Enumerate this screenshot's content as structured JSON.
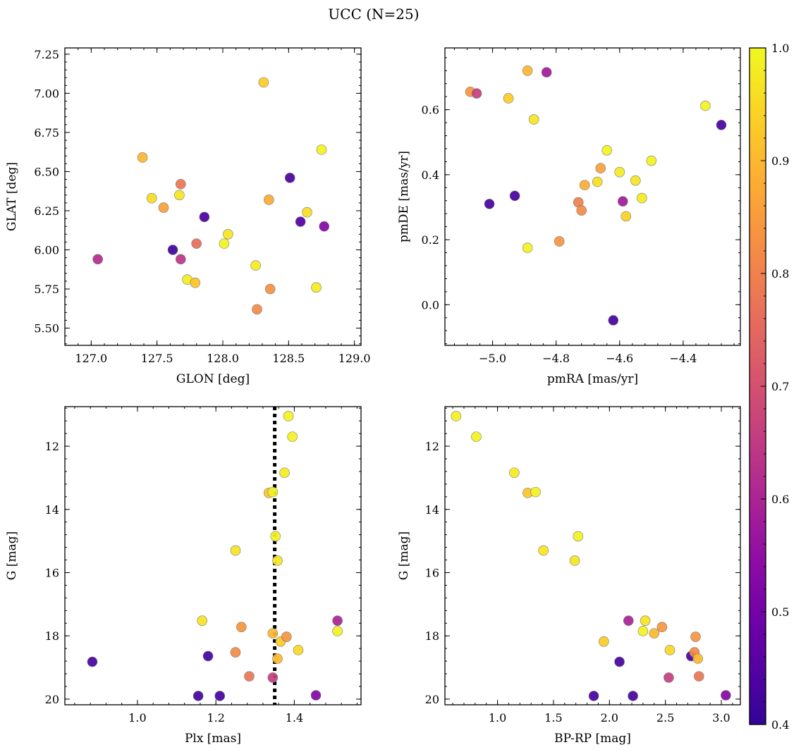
{
  "figure_title": "UCC (N=25)",
  "chart_data": [
    {
      "type": "scatter",
      "xlabel": "GLON [deg]",
      "ylabel": "GLAT [deg]",
      "xlim": [
        126.8,
        129.05
      ],
      "ylim": [
        5.39,
        7.29
      ],
      "yinvert": false,
      "xticks": [
        127.0,
        127.5,
        128.0,
        128.5,
        129.0
      ],
      "yticks": [
        5.5,
        5.75,
        6.0,
        6.25,
        6.5,
        6.75,
        7.0,
        7.25
      ],
      "xdec": 1,
      "ydec": 2,
      "points": [
        {
          "x": 127.05,
          "y": 5.94,
          "c": 0.62
        },
        {
          "x": 127.39,
          "y": 6.59,
          "c": 0.9
        },
        {
          "x": 127.46,
          "y": 6.33,
          "c": 0.96
        },
        {
          "x": 127.55,
          "y": 6.27,
          "c": 0.86
        },
        {
          "x": 127.62,
          "y": 6.0,
          "c": 0.42
        },
        {
          "x": 127.67,
          "y": 6.35,
          "c": 0.97
        },
        {
          "x": 127.68,
          "y": 6.42,
          "c": 0.78
        },
        {
          "x": 127.68,
          "y": 5.94,
          "c": 0.64
        },
        {
          "x": 127.73,
          "y": 5.81,
          "c": 0.98
        },
        {
          "x": 127.79,
          "y": 5.79,
          "c": 0.92
        },
        {
          "x": 127.8,
          "y": 6.04,
          "c": 0.76
        },
        {
          "x": 127.86,
          "y": 6.21,
          "c": 0.44
        },
        {
          "x": 128.01,
          "y": 6.04,
          "c": 0.99
        },
        {
          "x": 128.04,
          "y": 6.1,
          "c": 0.97
        },
        {
          "x": 128.25,
          "y": 5.9,
          "c": 0.98
        },
        {
          "x": 128.26,
          "y": 5.62,
          "c": 0.82
        },
        {
          "x": 128.31,
          "y": 7.07,
          "c": 0.93
        },
        {
          "x": 128.35,
          "y": 6.32,
          "c": 0.88
        },
        {
          "x": 128.36,
          "y": 5.75,
          "c": 0.83
        },
        {
          "x": 128.51,
          "y": 6.46,
          "c": 0.44
        },
        {
          "x": 128.59,
          "y": 6.18,
          "c": 0.45
        },
        {
          "x": 128.64,
          "y": 6.24,
          "c": 0.96
        },
        {
          "x": 128.71,
          "y": 5.76,
          "c": 0.98
        },
        {
          "x": 128.75,
          "y": 6.64,
          "c": 0.99
        },
        {
          "x": 128.77,
          "y": 6.15,
          "c": 0.53
        }
      ]
    },
    {
      "type": "scatter",
      "xlabel": "pmRA [mas/yr]",
      "ylabel": "pmDE [mas/yr]",
      "xlim": [
        -5.15,
        -4.22
      ],
      "ylim": [
        -0.125,
        0.79
      ],
      "yinvert": false,
      "xticks": [
        -5.0,
        -4.8,
        -4.6,
        -4.4
      ],
      "yticks": [
        0.0,
        0.2,
        0.4,
        0.6
      ],
      "xdec": 1,
      "ydec": 1,
      "points": [
        {
          "x": -5.07,
          "y": 0.655,
          "c": 0.84
        },
        {
          "x": -5.05,
          "y": 0.65,
          "c": 0.66
        },
        {
          "x": -4.89,
          "y": 0.72,
          "c": 0.9
        },
        {
          "x": -4.83,
          "y": 0.715,
          "c": 0.58
        },
        {
          "x": -4.95,
          "y": 0.635,
          "c": 0.93
        },
        {
          "x": -4.87,
          "y": 0.57,
          "c": 0.97
        },
        {
          "x": -5.01,
          "y": 0.31,
          "c": 0.43
        },
        {
          "x": -4.93,
          "y": 0.335,
          "c": 0.43
        },
        {
          "x": -4.89,
          "y": 0.175,
          "c": 0.99
        },
        {
          "x": -4.79,
          "y": 0.195,
          "c": 0.84
        },
        {
          "x": -4.73,
          "y": 0.315,
          "c": 0.8
        },
        {
          "x": -4.72,
          "y": 0.29,
          "c": 0.82
        },
        {
          "x": -4.71,
          "y": 0.368,
          "c": 0.88
        },
        {
          "x": -4.67,
          "y": 0.378,
          "c": 0.96
        },
        {
          "x": -4.66,
          "y": 0.42,
          "c": 0.86
        },
        {
          "x": -4.64,
          "y": 0.475,
          "c": 0.99
        },
        {
          "x": -4.6,
          "y": 0.408,
          "c": 0.98
        },
        {
          "x": -4.59,
          "y": 0.318,
          "c": 0.58
        },
        {
          "x": -4.58,
          "y": 0.272,
          "c": 0.94
        },
        {
          "x": -4.62,
          "y": -0.048,
          "c": 0.43
        },
        {
          "x": -4.55,
          "y": 0.382,
          "c": 0.97
        },
        {
          "x": -4.53,
          "y": 0.328,
          "c": 0.98
        },
        {
          "x": -4.5,
          "y": 0.443,
          "c": 0.99
        },
        {
          "x": -4.33,
          "y": 0.612,
          "c": 0.99
        },
        {
          "x": -4.28,
          "y": 0.553,
          "c": 0.43
        }
      ]
    },
    {
      "type": "scatter",
      "xlabel": "Plx [mas]",
      "ylabel": "G [mag]",
      "xlim": [
        0.815,
        1.57
      ],
      "ylim": [
        10.75,
        20.18
      ],
      "yinvert": true,
      "xticks": [
        1.0,
        1.2,
        1.4
      ],
      "yticks": [
        12,
        14,
        16,
        18,
        20
      ],
      "xdec": 1,
      "ydec": 0,
      "vline": {
        "x": 1.35
      },
      "points": [
        {
          "x": 0.885,
          "y": 18.82,
          "c": 0.43
        },
        {
          "x": 1.155,
          "y": 19.9,
          "c": 0.43
        },
        {
          "x": 1.18,
          "y": 18.64,
          "c": 0.43
        },
        {
          "x": 1.21,
          "y": 19.9,
          "c": 0.43
        },
        {
          "x": 1.165,
          "y": 17.52,
          "c": 0.97
        },
        {
          "x": 1.25,
          "y": 15.3,
          "c": 0.97
        },
        {
          "x": 1.25,
          "y": 18.52,
          "c": 0.82
        },
        {
          "x": 1.265,
          "y": 17.72,
          "c": 0.84
        },
        {
          "x": 1.285,
          "y": 19.28,
          "c": 0.78
        },
        {
          "x": 1.335,
          "y": 13.48,
          "c": 0.92
        },
        {
          "x": 1.345,
          "y": 13.45,
          "c": 0.99
        },
        {
          "x": 1.345,
          "y": 17.92,
          "c": 0.9
        },
        {
          "x": 1.345,
          "y": 19.32,
          "c": 0.66
        },
        {
          "x": 1.352,
          "y": 14.85,
          "c": 0.99
        },
        {
          "x": 1.357,
          "y": 15.62,
          "c": 0.97
        },
        {
          "x": 1.357,
          "y": 18.72,
          "c": 0.9
        },
        {
          "x": 1.365,
          "y": 18.18,
          "c": 0.93
        },
        {
          "x": 1.375,
          "y": 12.84,
          "c": 0.98
        },
        {
          "x": 1.38,
          "y": 18.03,
          "c": 0.84
        },
        {
          "x": 1.385,
          "y": 11.05,
          "c": 0.99
        },
        {
          "x": 1.395,
          "y": 11.7,
          "c": 0.99
        },
        {
          "x": 1.41,
          "y": 18.45,
          "c": 0.95
        },
        {
          "x": 1.455,
          "y": 19.88,
          "c": 0.53
        },
        {
          "x": 1.51,
          "y": 17.52,
          "c": 0.6
        },
        {
          "x": 1.51,
          "y": 17.85,
          "c": 0.99
        }
      ]
    },
    {
      "type": "scatter",
      "xlabel": "BP-RP [mag]",
      "ylabel": "G [mag]",
      "xlim": [
        0.53,
        3.17
      ],
      "ylim": [
        10.75,
        20.18
      ],
      "yinvert": true,
      "xticks": [
        1.0,
        1.5,
        2.0,
        2.5,
        3.0
      ],
      "yticks": [
        12,
        14,
        16,
        18,
        20
      ],
      "xdec": 1,
      "ydec": 0,
      "points": [
        {
          "x": 0.63,
          "y": 11.05,
          "c": 0.99
        },
        {
          "x": 0.81,
          "y": 11.7,
          "c": 0.99
        },
        {
          "x": 1.15,
          "y": 12.84,
          "c": 0.98
        },
        {
          "x": 1.27,
          "y": 13.48,
          "c": 0.92
        },
        {
          "x": 1.34,
          "y": 13.45,
          "c": 0.99
        },
        {
          "x": 1.41,
          "y": 15.3,
          "c": 0.97
        },
        {
          "x": 1.72,
          "y": 14.85,
          "c": 0.99
        },
        {
          "x": 1.69,
          "y": 15.62,
          "c": 0.97
        },
        {
          "x": 1.86,
          "y": 19.9,
          "c": 0.43
        },
        {
          "x": 1.95,
          "y": 18.18,
          "c": 0.93
        },
        {
          "x": 2.09,
          "y": 18.82,
          "c": 0.43
        },
        {
          "x": 2.17,
          "y": 17.52,
          "c": 0.6
        },
        {
          "x": 2.21,
          "y": 19.9,
          "c": 0.43
        },
        {
          "x": 2.3,
          "y": 17.85,
          "c": 0.99
        },
        {
          "x": 2.32,
          "y": 17.52,
          "c": 0.97
        },
        {
          "x": 2.4,
          "y": 17.92,
          "c": 0.9
        },
        {
          "x": 2.47,
          "y": 17.72,
          "c": 0.84
        },
        {
          "x": 2.54,
          "y": 18.45,
          "c": 0.95
        },
        {
          "x": 2.53,
          "y": 19.32,
          "c": 0.66
        },
        {
          "x": 2.73,
          "y": 18.64,
          "c": 0.43
        },
        {
          "x": 2.76,
          "y": 18.52,
          "c": 0.82
        },
        {
          "x": 2.77,
          "y": 18.03,
          "c": 0.84
        },
        {
          "x": 2.79,
          "y": 18.72,
          "c": 0.9
        },
        {
          "x": 2.8,
          "y": 19.28,
          "c": 0.78
        },
        {
          "x": 3.04,
          "y": 19.88,
          "c": 0.53
        }
      ]
    }
  ],
  "colorbar": {
    "colormap": "plasma",
    "range": [
      0.4,
      1.0
    ],
    "ticks": [
      0.4,
      0.5,
      0.6,
      0.7,
      0.8,
      0.9,
      1.0
    ]
  }
}
